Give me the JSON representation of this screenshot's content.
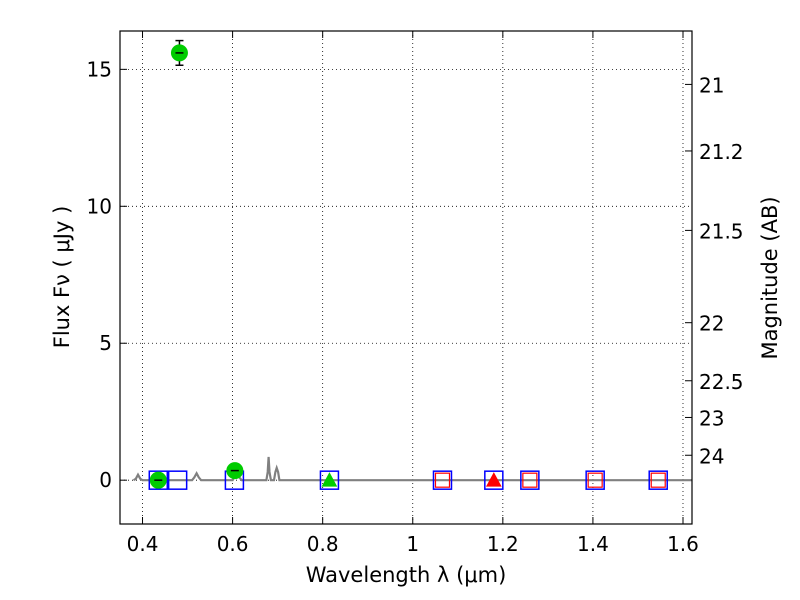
{
  "chart_data": {
    "type": "scatter",
    "xlabel": "Wavelength  λ (μm)",
    "ylabel_left": "Flux  Fν  ( μJy )",
    "ylabel_right": "Magnitude (AB)",
    "xlim": [
      0.35,
      1.62
    ],
    "ylim": [
      -1.6,
      16.4
    ],
    "x_ticks": [
      0.4,
      0.6,
      0.8,
      1.0,
      1.2,
      1.4,
      1.6
    ],
    "x_tick_labels": [
      "0.4",
      "0.6",
      "0.8",
      "1",
      "1.2",
      "1.4",
      "1.6"
    ],
    "y_ticks": [
      0,
      5,
      10,
      15
    ],
    "y_tick_labels": [
      "0",
      "5",
      "10",
      "15"
    ],
    "right_ticks": [
      {
        "label": "21",
        "flux": 14.45
      },
      {
        "label": "21.2",
        "flux": 12.02
      },
      {
        "label": "21.5",
        "flux": 9.12
      },
      {
        "label": "22",
        "flux": 5.75
      },
      {
        "label": "22.5",
        "flux": 3.63
      },
      {
        "label": "23",
        "flux": 2.29
      },
      {
        "label": "24",
        "flux": 0.91
      }
    ],
    "grid": true,
    "series": [
      {
        "name": "spectrum",
        "kind": "line",
        "color": "#808080",
        "x": [
          0.38,
          0.385,
          0.39,
          0.395,
          0.4,
          0.45,
          0.5,
          0.51,
          0.515,
          0.52,
          0.525,
          0.53,
          0.6,
          0.605,
          0.61,
          0.615,
          0.62,
          0.675,
          0.678,
          0.68,
          0.682,
          0.685,
          0.692,
          0.695,
          0.698,
          0.701,
          0.704,
          0.75,
          0.8,
          0.9,
          1.0,
          1.2,
          1.4,
          1.62
        ],
        "y": [
          0.0,
          0.05,
          0.2,
          0.05,
          0.0,
          0.0,
          0.0,
          0.0,
          0.1,
          0.25,
          0.1,
          0.0,
          0.0,
          0.15,
          0.35,
          0.1,
          0.0,
          0.0,
          0.3,
          0.85,
          0.3,
          0.0,
          0.0,
          0.3,
          0.45,
          0.3,
          0.0,
          0.0,
          0.0,
          0.0,
          0.0,
          0.0,
          0.0,
          0.0
        ]
      },
      {
        "name": "model-bands",
        "kind": "open-square",
        "color": "#0000ff",
        "x": [
          0.435,
          0.478,
          0.604,
          0.815,
          1.066,
          1.18,
          1.26,
          1.405,
          1.545
        ],
        "y": [
          0,
          0,
          0,
          0,
          0,
          0,
          0,
          0,
          0
        ]
      },
      {
        "name": "model-bands-red",
        "kind": "open-square-small",
        "color": "#ff0000",
        "x": [
          1.066,
          1.26,
          1.405,
          1.545
        ],
        "y": [
          0,
          0,
          0,
          0
        ]
      },
      {
        "name": "detections",
        "kind": "filled-circle",
        "color": "#00cc00",
        "x": [
          0.435,
          0.482,
          0.605
        ],
        "y": [
          0.0,
          15.6,
          0.35
        ],
        "yerr": [
          0.05,
          0.45,
          0.05
        ]
      },
      {
        "name": "upper-limit-green",
        "kind": "triangle",
        "color": "#00cc00",
        "x": [
          0.815
        ],
        "y": [
          0.0
        ]
      },
      {
        "name": "upper-limit-red",
        "kind": "triangle",
        "color": "#ff0000",
        "x": [
          1.18
        ],
        "y": [
          0.0
        ]
      }
    ]
  }
}
